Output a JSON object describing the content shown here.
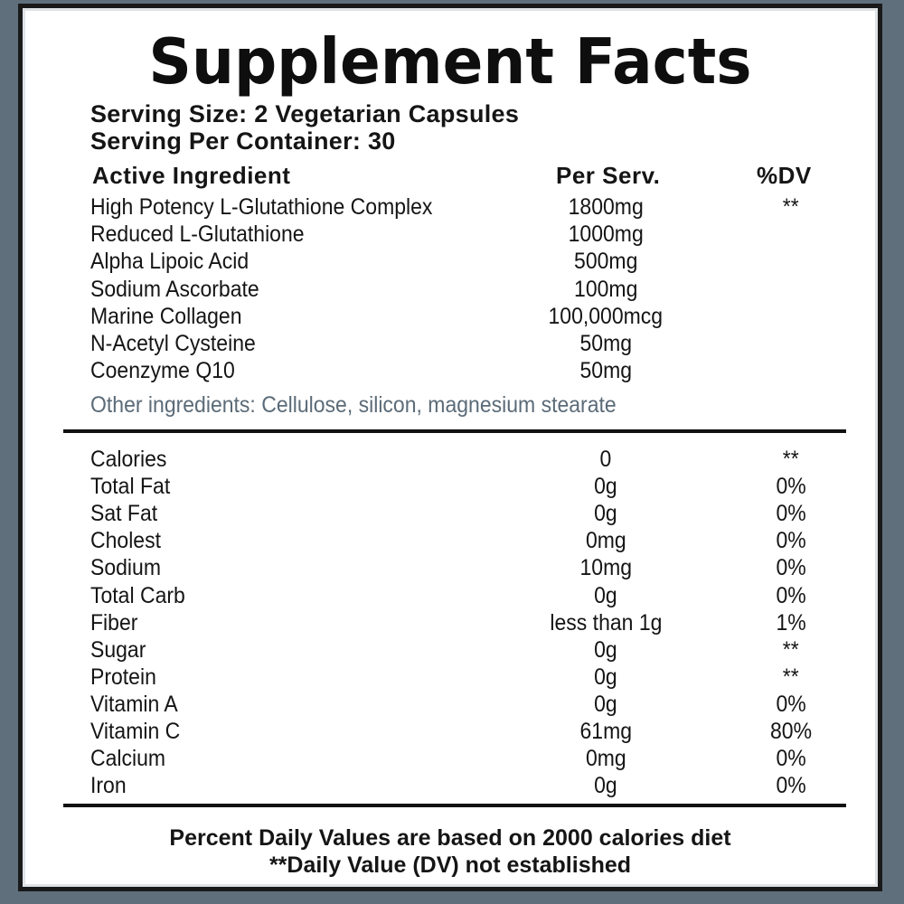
{
  "title": "Supplement Facts",
  "serving_size": "Serving Size: 2 Vegetarian Capsules",
  "serving_per_container": "Serving Per Container: 30",
  "headers": {
    "ingredient": "Active Ingredient",
    "per_serv": "Per Serv.",
    "dv": "%DV"
  },
  "active_ingredients": [
    {
      "name": "High Potency L-Glutathione Complex",
      "amount": "1800mg",
      "dv": "**"
    },
    {
      "name": "Reduced L-Glutathione",
      "amount": "1000mg",
      "dv": ""
    },
    {
      "name": "Alpha Lipoic Acid",
      "amount": "500mg",
      "dv": ""
    },
    {
      "name": "Sodium Ascorbate",
      "amount": "100mg",
      "dv": ""
    },
    {
      "name": "Marine Collagen",
      "amount": "100,000mcg",
      "dv": ""
    },
    {
      "name": "N-Acetyl Cysteine",
      "amount": "50mg",
      "dv": ""
    },
    {
      "name": "Coenzyme Q10",
      "amount": "50mg",
      "dv": ""
    }
  ],
  "other_ingredients": "Other ingredients: Cellulose, silicon, magnesium stearate",
  "nutrients": [
    {
      "name": "Calories",
      "amount": "0",
      "dv": "**"
    },
    {
      "name": "Total Fat",
      "amount": "0g",
      "dv": "0%"
    },
    {
      "name": "Sat Fat",
      "amount": "0g",
      "dv": "0%"
    },
    {
      "name": "Cholest",
      "amount": "0mg",
      "dv": "0%"
    },
    {
      "name": "Sodium",
      "amount": "10mg",
      "dv": "0%"
    },
    {
      "name": "Total Carb",
      "amount": "0g",
      "dv": "0%"
    },
    {
      "name": "Fiber",
      "amount": "less than 1g",
      "dv": "1%"
    },
    {
      "name": "Sugar",
      "amount": "0g",
      "dv": "**"
    },
    {
      "name": "Protein",
      "amount": "0g",
      "dv": "**"
    },
    {
      "name": "Vitamin A",
      "amount": "0g",
      "dv": "0%"
    },
    {
      "name": "Vitamin C",
      "amount": "61mg",
      "dv": "80%"
    },
    {
      "name": "Calcium",
      "amount": "0mg",
      "dv": "0%"
    },
    {
      "name": "Iron",
      "amount": "0g",
      "dv": "0%"
    }
  ],
  "footer": {
    "line1": "Percent Daily Values are based on 2000 calories diet",
    "line2": "**Daily Value (DV) not established"
  }
}
